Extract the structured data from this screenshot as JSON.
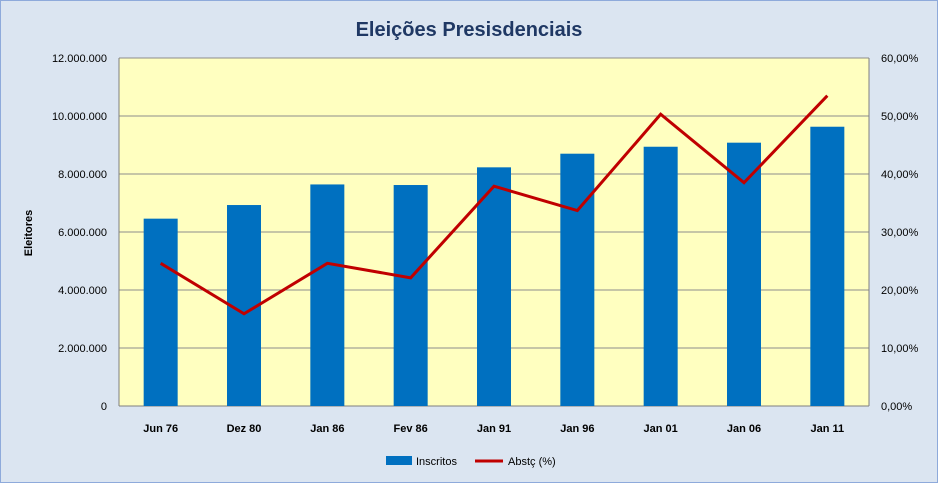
{
  "chart_data": {
    "type": "bar",
    "title": "Eleições Presisdenciais",
    "xlabel": "",
    "ylabel": "Eleitores",
    "y2label": "",
    "categories": [
      "Jun 76",
      "Dez 80",
      "Jan 86",
      "Fev 86",
      "Jan 91",
      "Jan 96",
      "Jan 01",
      "Jan 06",
      "Jan 11"
    ],
    "series": [
      {
        "name": "Inscritos",
        "type": "bar",
        "axis": "left",
        "values": [
          6460000,
          6930000,
          7640000,
          7620000,
          8230000,
          8700000,
          8940000,
          9080000,
          9630000
        ]
      },
      {
        "name": "Abstç (%)",
        "type": "line",
        "axis": "right",
        "values": [
          24.6,
          15.9,
          24.6,
          22.1,
          37.9,
          33.7,
          50.3,
          38.5,
          53.5
        ]
      }
    ],
    "ylim": [
      0,
      12000000
    ],
    "y2lim": [
      0,
      60
    ],
    "yticks": [
      "0",
      "2.000.000",
      "4.000.000",
      "6.000.000",
      "8.000.000",
      "10.000.000",
      "12.000.000"
    ],
    "y2ticks": [
      "0,00%",
      "10,00%",
      "20,00%",
      "30,00%",
      "40,00%",
      "50,00%",
      "60,00%"
    ],
    "grid": true,
    "legend_position": "bottom",
    "colors": {
      "background": "#dbe5f1",
      "plot_area": "#ffffc0",
      "bar": "#0070c0",
      "line": "#c00000",
      "title": "#1f3864",
      "gridline": "#8c8c8c"
    }
  }
}
